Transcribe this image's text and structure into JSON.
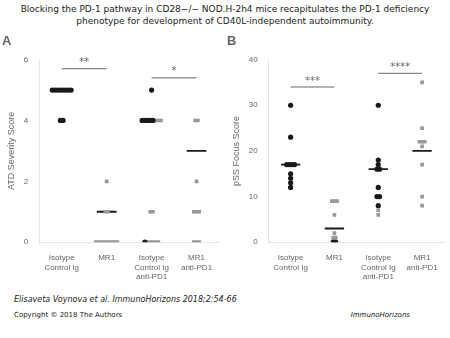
{
  "title": "Blocking the PD-1 pathway in CD28−/− NOD.H-2h4 mice recapitulates the PD-1 deficiency\nphenotype for development of CD40L-independent autoimmunity.",
  "annotations": [
    "Elisaveta Voynova et al. ImmunoHorizons 2018;2:54-66",
    "Copyright © 2018 The Authors",
    "ImmunoHorizons"
  ],
  "chart_data": [
    {
      "type": "scatter",
      "title": "A",
      "y_label": "ATD Severity Score",
      "categories": [
        "Isotype\nControl Ig",
        "MR1",
        "Isotype\nControl Ig\nanti-PD1",
        "MR1\nanti-PD1"
      ],
      "ylim": [
        0,
        6
      ],
      "yticks": [
        0,
        2,
        4,
        6
      ],
      "grid": false,
      "series": [
        {
          "marker": "circle",
          "color": "#1a1a1a",
          "values": [
            [
              5,
              5,
              5,
              5,
              5,
              5,
              5,
              5,
              4,
              4
            ],
            [],
            [
              5,
              4,
              4,
              4,
              4,
              4,
              0
            ],
            []
          ]
        },
        {
          "marker": "square",
          "color": "#999999",
          "values": [
            [],
            [
              0,
              0,
              0,
              0,
              0,
              0,
              0,
              0,
              0,
              1,
              1,
              2
            ],
            [
              0,
              0,
              0,
              0,
              0,
              4,
              4,
              4,
              1,
              1
            ],
            [
              0,
              0,
              0,
              1,
              1,
              1,
              4,
              4,
              2
            ]
          ]
        },
        {
          "type": "median",
          "color": "#1a1a1a",
          "values": [
            5.0,
            1.0,
            4.0,
            3.0
          ]
        }
      ],
      "annotations": [
        {
          "text": "**",
          "from": "Isotype\nControl Ig",
          "to": "MR1",
          "y": 5.7
        },
        {
          "text": "*",
          "from": "Isotype\nControl Ig\nanti-PD1",
          "to": "MR1\nanti-PD1",
          "y": 5.4
        }
      ]
    },
    {
      "type": "scatter",
      "title": "B",
      "y_label": "pSS Focus Score",
      "categories": [
        "Isotype\nControl Ig",
        "MR1",
        "Isotype\nControl Ig\nanti-PD1",
        "MR1\nanti-PD1"
      ],
      "ylim": [
        0,
        40
      ],
      "yticks": [
        0,
        10,
        20,
        30,
        40
      ],
      "grid": false,
      "series": [
        {
          "marker": "circle",
          "color": "#1a1a1a",
          "values": [
            [
              30,
              23,
              17,
              17,
              17,
              17,
              15,
              14,
              13,
              12
            ],
            [
              0,
              0
            ],
            [
              30,
              18,
              17,
              16,
              16,
              12,
              10,
              10,
              8
            ],
            []
          ]
        },
        {
          "marker": "square",
          "color": "#999999",
          "values": [
            [],
            [
              6,
              9,
              9,
              9,
              2,
              1,
              1
            ],
            [
              7,
              6
            ],
            [
              35,
              25,
              22,
              22,
              22,
              21,
              17,
              10,
              8
            ]
          ]
        },
        {
          "type": "median",
          "color": "#1a1a1a",
          "values": [
            17,
            3,
            16,
            20
          ]
        }
      ],
      "annotations": [
        {
          "text": "***",
          "from": "Isotype\nControl Ig",
          "to": "MR1",
          "y": 34
        },
        {
          "text": "****",
          "from": "Isotype\nControl Ig\nanti-PD1",
          "to": "MR1\nanti-PD1",
          "y": 37
        }
      ]
    }
  ]
}
